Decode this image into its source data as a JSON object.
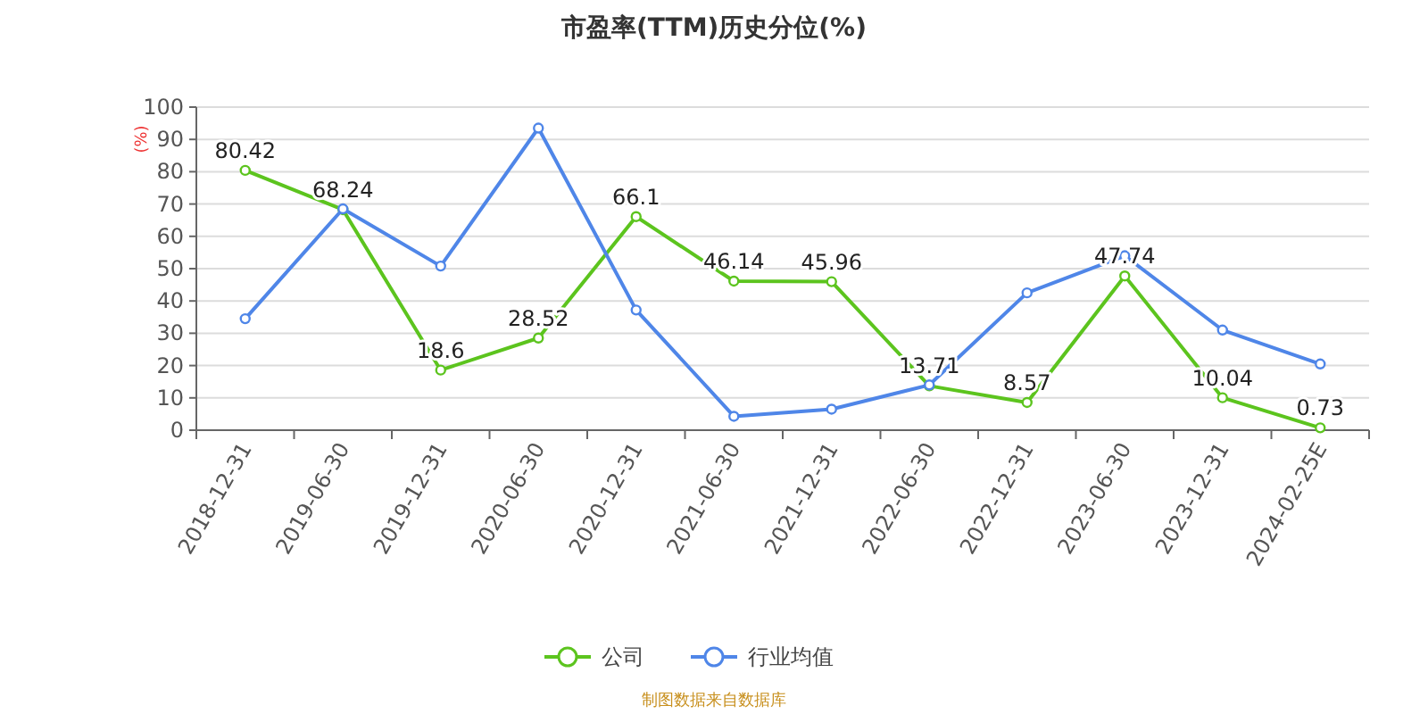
{
  "chart_data": {
    "type": "line",
    "title": "市盈率(TTM)历史分位(%)",
    "ylabel": "(%)",
    "categories": [
      "2018-12-31",
      "2019-06-30",
      "2019-12-31",
      "2020-06-30",
      "2020-12-31",
      "2021-06-30",
      "2021-12-31",
      "2022-06-30",
      "2022-12-31",
      "2023-06-30",
      "2023-12-31",
      "2024-02-25E"
    ],
    "series": [
      {
        "name": "公司",
        "color": "#5cc41e",
        "values": [
          80.42,
          68.24,
          18.6,
          28.52,
          66.1,
          46.14,
          45.96,
          13.71,
          8.57,
          47.74,
          10.04,
          0.73
        ],
        "value_labels": [
          "80.42",
          "68.24",
          "18.6",
          "28.52",
          "66.1",
          "46.14",
          "45.96",
          "13.71",
          "8.57",
          "47.74",
          "10.04",
          "0.73"
        ]
      },
      {
        "name": "行业均值",
        "color": "#4f86e8",
        "values": [
          34.5,
          68.5,
          50.8,
          93.5,
          37.2,
          4.3,
          6.5,
          14,
          42.5,
          54,
          31,
          20.5
        ]
      }
    ],
    "ylim": [
      0,
      100
    ],
    "yticks": [
      0,
      10,
      20,
      30,
      40,
      50,
      60,
      70,
      80,
      90,
      100
    ],
    "grid": "y",
    "legend": "bottom",
    "marker": "circle",
    "line_style": "solid",
    "annotations": [
      "制图数据来自数据库"
    ]
  }
}
